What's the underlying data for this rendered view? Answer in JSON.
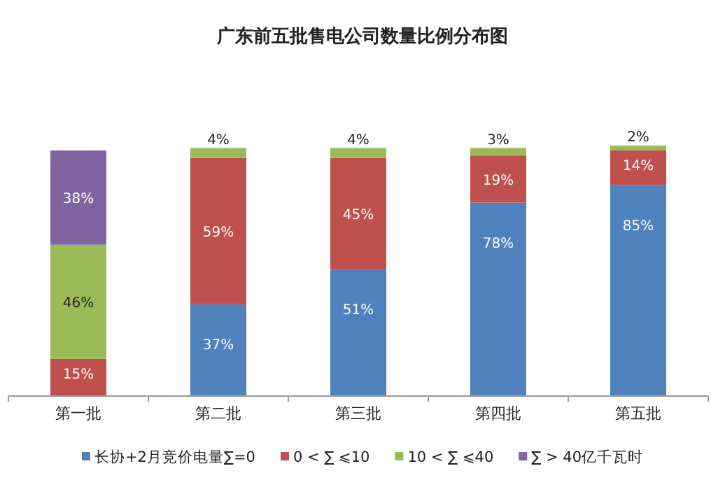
{
  "chart_data": {
    "type": "bar",
    "stacked": true,
    "title": "广东前五批售电公司数量比例分布图",
    "categories": [
      "第一批",
      "第二批",
      "第三批",
      "第四批",
      "第五批"
    ],
    "series": [
      {
        "name": "长协+2月竞价电量∑=0",
        "color": "#4f81bd",
        "values": [
          null,
          37,
          51,
          78,
          85
        ],
        "value_labels": [
          null,
          "37%",
          "51%",
          "78%",
          "85%"
        ]
      },
      {
        "name": "0 < ∑ ⩽10",
        "color": "#c0504d",
        "values": [
          15,
          59,
          45,
          19,
          14
        ],
        "value_labels": [
          "15%",
          "59%",
          "45%",
          "19%",
          "14%"
        ]
      },
      {
        "name": "10 < ∑ ⩽40",
        "color": "#9bbb59",
        "values": [
          46,
          4,
          4,
          3,
          2
        ],
        "value_labels": [
          "46%",
          "4%",
          "4%",
          "3%",
          "2%"
        ]
      },
      {
        "name": "∑ > 40亿千瓦时",
        "color": "#8064a2",
        "values": [
          38,
          null,
          null,
          null,
          null
        ],
        "value_labels": [
          "38%",
          null,
          null,
          null,
          null
        ]
      }
    ],
    "legend": "bottom"
  }
}
